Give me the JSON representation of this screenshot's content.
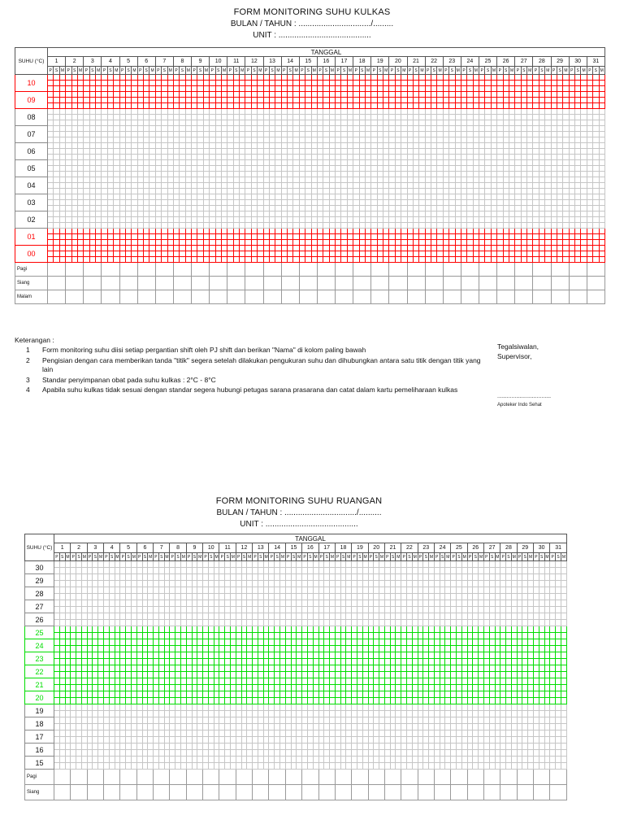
{
  "page": {
    "background": "#ffffff"
  },
  "forms": [
    {
      "title": "FORM MONITORING SUHU KULKAS",
      "bulan_tahun": "BULAN / TAHUN : ................................/.........",
      "unit": "UNIT : .........................................",
      "table": {
        "corner_header": "SUHU (°C)",
        "date_header": "TANGGAL",
        "days": [
          "1",
          "2",
          "3",
          "4",
          "5",
          "6",
          "7",
          "8",
          "9",
          "10",
          "11",
          "12",
          "13",
          "14",
          "15",
          "16",
          "17",
          "18",
          "19",
          "20",
          "21",
          "22",
          "23",
          "24",
          "25",
          "26",
          "27",
          "28",
          "29",
          "30",
          "31"
        ],
        "shifts": [
          "P",
          "S",
          "M"
        ],
        "highlight_color": "#ff0000",
        "temp_rows": [
          {
            "label": "10",
            "highlight": true
          },
          {
            "label": "09",
            "highlight": true
          },
          {
            "label": "08",
            "highlight": false
          },
          {
            "label": "07",
            "highlight": false
          },
          {
            "label": "06",
            "highlight": false
          },
          {
            "label": "05",
            "highlight": false
          },
          {
            "label": "04",
            "highlight": false
          },
          {
            "label": "03",
            "highlight": false
          },
          {
            "label": "02",
            "highlight": false
          },
          {
            "label": "01",
            "highlight": true
          },
          {
            "label": "00",
            "highlight": true
          }
        ],
        "name_rows": [
          "Pagi",
          "Siang",
          "Malam"
        ]
      },
      "keterangan": {
        "heading": "Keterangan :",
        "items": [
          {
            "no": "1",
            "text": "Form monitoring suhu diisi setiap pergantian shift oleh PJ shift dan berikan \"Nama\" di kolom paling bawah"
          },
          {
            "no": "2",
            "text": "Pengisian dengan cara memberikan tanda \"titik\" segera setelah dilakukan pengukuran suhu dan dihubungkan antara satu titik dengan titik yang lain"
          },
          {
            "no": "3",
            "text": "Standar penyimpanan obat pada suhu kulkas : 2°C - 8°C"
          },
          {
            "no": "4",
            "text": "Apabila suhu kulkas tidak sesuai dengan standar segera hubungi petugas sarana prasarana dan catat dalam kartu pemeliharaan kulkas"
          }
        ]
      },
      "signature": {
        "place": "Tegalsiwalan,",
        "role": "Supervisor,",
        "line": "..................................",
        "name": "Apoteker Indo Sehat"
      }
    },
    {
      "title": "FORM MONITORING SUHU RUANGAN",
      "bulan_tahun": "BULAN / TAHUN : ................................/..........",
      "unit": "UNIT : .........................................",
      "table": {
        "corner_header": "SUHU (°C)",
        "date_header": "TANGGAL",
        "days": [
          "1",
          "2",
          "3",
          "4",
          "5",
          "6",
          "7",
          "8",
          "9",
          "10",
          "11",
          "12",
          "13",
          "14",
          "15",
          "16",
          "17",
          "18",
          "19",
          "20",
          "21",
          "22",
          "23",
          "24",
          "25",
          "26",
          "27",
          "28",
          "29",
          "30",
          "31"
        ],
        "shifts": [
          "P",
          "S",
          "M"
        ],
        "highlight_color": "#00dd00",
        "temp_rows": [
          {
            "label": "30",
            "highlight": false
          },
          {
            "label": "29",
            "highlight": false
          },
          {
            "label": "28",
            "highlight": false
          },
          {
            "label": "27",
            "highlight": false
          },
          {
            "label": "26",
            "highlight": false
          },
          {
            "label": "25",
            "highlight": true
          },
          {
            "label": "24",
            "highlight": true
          },
          {
            "label": "23",
            "highlight": true
          },
          {
            "label": "22",
            "highlight": true
          },
          {
            "label": "21",
            "highlight": true
          },
          {
            "label": "20",
            "highlight": true
          },
          {
            "label": "19",
            "highlight": false
          },
          {
            "label": "18",
            "highlight": false
          },
          {
            "label": "17",
            "highlight": false
          },
          {
            "label": "16",
            "highlight": false
          },
          {
            "label": "15",
            "highlight": false
          }
        ],
        "name_rows": [
          "Pagi",
          "Siang"
        ]
      }
    }
  ]
}
